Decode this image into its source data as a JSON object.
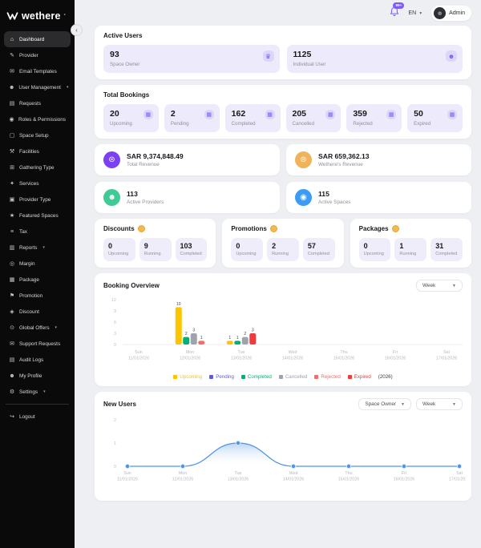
{
  "colors": {
    "accent": "#7c5cfc",
    "sidebar_bg": "#0a0a0b",
    "tile_bg": "#eceafb",
    "total_revenue_icon": "#7c3ff2",
    "wethere_revenue_icon": "#f0b359",
    "active_providers_icon": "#3ecb96",
    "active_spaces_icon": "#3d9bf5",
    "line_chart": "#4f93e8"
  },
  "header": {
    "notification_badge": "99+",
    "language": "EN",
    "user": "Admin"
  },
  "sidebar": {
    "logo": "wethere",
    "items": [
      {
        "label": "Dashboard",
        "icon": "dashboard-icon",
        "glyph": "⌂",
        "active": true
      },
      {
        "label": "Provider",
        "icon": "provider-icon",
        "glyph": "✎"
      },
      {
        "label": "Email Templates",
        "icon": "email-templates-icon",
        "glyph": "✉"
      },
      {
        "label": "User Management",
        "icon": "user-management-icon",
        "glyph": "☻",
        "chevron": true
      },
      {
        "label": "Requests",
        "icon": "requests-icon",
        "glyph": "▤"
      },
      {
        "label": "Roles & Permissions",
        "icon": "roles-permissions-icon",
        "glyph": "◉"
      },
      {
        "label": "Space Setup",
        "icon": "space-setup-icon",
        "glyph": "▢"
      },
      {
        "label": "Facilities",
        "icon": "facilities-icon",
        "glyph": "⚒"
      },
      {
        "label": "Gathering Type",
        "icon": "gathering-type-icon",
        "glyph": "⊞"
      },
      {
        "label": "Services",
        "icon": "services-icon",
        "glyph": "✦"
      },
      {
        "label": "Provider Type",
        "icon": "provider-type-icon",
        "glyph": "▣"
      },
      {
        "label": "Featured Spaces",
        "icon": "featured-spaces-icon",
        "glyph": "★"
      },
      {
        "label": "Tax",
        "icon": "tax-icon",
        "glyph": "≡"
      },
      {
        "label": "Reports",
        "icon": "reports-icon",
        "glyph": "▥",
        "chevron": true
      },
      {
        "label": "Margin",
        "icon": "margin-icon",
        "glyph": "◎"
      },
      {
        "label": "Package",
        "icon": "package-icon",
        "glyph": "▦"
      },
      {
        "label": "Promotion",
        "icon": "promotion-icon",
        "glyph": "⚑"
      },
      {
        "label": "Discount",
        "icon": "discount-icon",
        "glyph": "◈"
      },
      {
        "label": "Global Offers",
        "icon": "global-offers-icon",
        "glyph": "⊙",
        "chevron": true
      },
      {
        "label": "Support Requests",
        "icon": "support-requests-icon",
        "glyph": "✉"
      },
      {
        "label": "Audit Logs",
        "icon": "audit-logs-icon",
        "glyph": "▤"
      },
      {
        "label": "My Profile",
        "icon": "my-profile-icon",
        "glyph": "☻"
      },
      {
        "label": "Settings",
        "icon": "settings-icon",
        "glyph": "⚙",
        "chevron": true
      },
      {
        "label": "Logout",
        "icon": "logout-icon",
        "glyph": "↪",
        "divider_before": true
      }
    ]
  },
  "active_users": {
    "title": "Active Users",
    "tiles": [
      {
        "value": "93",
        "label": "Space Owner",
        "icon": "crown-icon",
        "glyph": "♛"
      },
      {
        "value": "1125",
        "label": "Individual User",
        "icon": "user-icon",
        "glyph": "☻"
      }
    ]
  },
  "total_bookings": {
    "title": "Total Bookings",
    "tiles": [
      {
        "value": "20",
        "label": "Upcoming",
        "icon": "calendar-icon",
        "glyph": "▦"
      },
      {
        "value": "2",
        "label": "Pending",
        "icon": "calendar-icon",
        "glyph": "▦"
      },
      {
        "value": "162",
        "label": "Completed",
        "icon": "calendar-icon",
        "glyph": "▦"
      },
      {
        "value": "205",
        "label": "Cancelled",
        "icon": "calendar-icon",
        "glyph": "▦"
      },
      {
        "value": "359",
        "label": "Rejected",
        "icon": "calendar-icon",
        "glyph": "▦"
      },
      {
        "value": "50",
        "label": "Expired",
        "icon": "calendar-icon",
        "glyph": "▦"
      }
    ]
  },
  "stat_cards": [
    {
      "value": "SAR 9,374,848.49",
      "label": "Total Revenue",
      "icon": "coin-icon",
      "glyph": "⊜",
      "color": "#7c3ff2"
    },
    {
      "value": "SAR 659,362.13",
      "label": "Wethere's Revenue",
      "icon": "coin-icon",
      "glyph": "⊜",
      "color": "#f0b359"
    },
    {
      "value": "113",
      "label": "Active Providers",
      "icon": "provider-icon",
      "glyph": "☻",
      "color": "#3ecb96"
    },
    {
      "value": "115",
      "label": "Active Spaces",
      "icon": "location-pin-icon",
      "glyph": "◉",
      "color": "#3d9bf5"
    }
  ],
  "promo_cards": [
    {
      "title": "Discounts",
      "icon": "coin-icon",
      "tiles": [
        {
          "value": "0",
          "label": "Upcoming"
        },
        {
          "value": "9",
          "label": "Running"
        },
        {
          "value": "103",
          "label": "Completed"
        }
      ]
    },
    {
      "title": "Promotions",
      "icon": "coin-icon",
      "tiles": [
        {
          "value": "0",
          "label": "Upcoming"
        },
        {
          "value": "2",
          "label": "Running"
        },
        {
          "value": "57",
          "label": "Completed"
        }
      ]
    },
    {
      "title": "Packages",
      "icon": "coin-icon",
      "tiles": [
        {
          "value": "0",
          "label": "Upcoming"
        },
        {
          "value": "1",
          "label": "Running"
        },
        {
          "value": "31",
          "label": "Completed"
        }
      ]
    }
  ],
  "booking_overview": {
    "title": "Booking Overview",
    "filter": "Week"
  },
  "new_users": {
    "title": "New Users",
    "filters": [
      "Space Owner",
      "Week"
    ]
  },
  "chart_data": [
    {
      "type": "bar",
      "title": "Booking Overview",
      "categories": [
        "Sun",
        "Mon",
        "Tue",
        "Wed",
        "Thu",
        "Fri",
        "Sat"
      ],
      "dates": [
        "11/01/2026",
        "12/01/2026",
        "13/01/2026",
        "14/01/2026",
        "15/01/2026",
        "16/01/2026",
        "17/01/2026"
      ],
      "series": [
        {
          "name": "Upcoming",
          "color": "#fdc500",
          "values": [
            0,
            10,
            1,
            0,
            0,
            0,
            0
          ]
        },
        {
          "name": "Pending",
          "color": "#6159e6",
          "values": [
            0,
            0,
            0,
            0,
            0,
            0,
            0
          ]
        },
        {
          "name": "Completed",
          "color": "#00b374",
          "values": [
            0,
            2,
            1,
            0,
            0,
            0,
            0
          ]
        },
        {
          "name": "Cancelled",
          "color": "#9ea3ae",
          "values": [
            0,
            3,
            2,
            0,
            0,
            0,
            0
          ]
        },
        {
          "name": "Rejected",
          "color": "#f26d6d",
          "values": [
            0,
            1,
            0,
            0,
            0,
            0,
            0
          ]
        },
        {
          "name": "Expired",
          "color": "#ee3b3b",
          "values": [
            0,
            0,
            3,
            0,
            0,
            0,
            0
          ]
        }
      ],
      "legend_suffix": "(2026)",
      "yticks": [
        0,
        3,
        6,
        9,
        12
      ],
      "ylim": [
        0,
        12
      ],
      "legend_position": "bottom"
    },
    {
      "type": "area",
      "title": "New Users",
      "categories": [
        "Sun",
        "Mon",
        "Tue",
        "Wed",
        "Thu",
        "Fri",
        "Sat"
      ],
      "dates": [
        "11/01/2026",
        "12/01/2026",
        "13/01/2026",
        "14/01/2026",
        "15/01/2026",
        "16/01/2026",
        "17/01/2026"
      ],
      "series": [
        {
          "name": "New Users",
          "color": "#4f93e8",
          "values": [
            0,
            0,
            1,
            0,
            0,
            0,
            0
          ]
        }
      ],
      "yticks": [
        0,
        1,
        2
      ],
      "ylim": [
        0,
        2
      ]
    }
  ]
}
